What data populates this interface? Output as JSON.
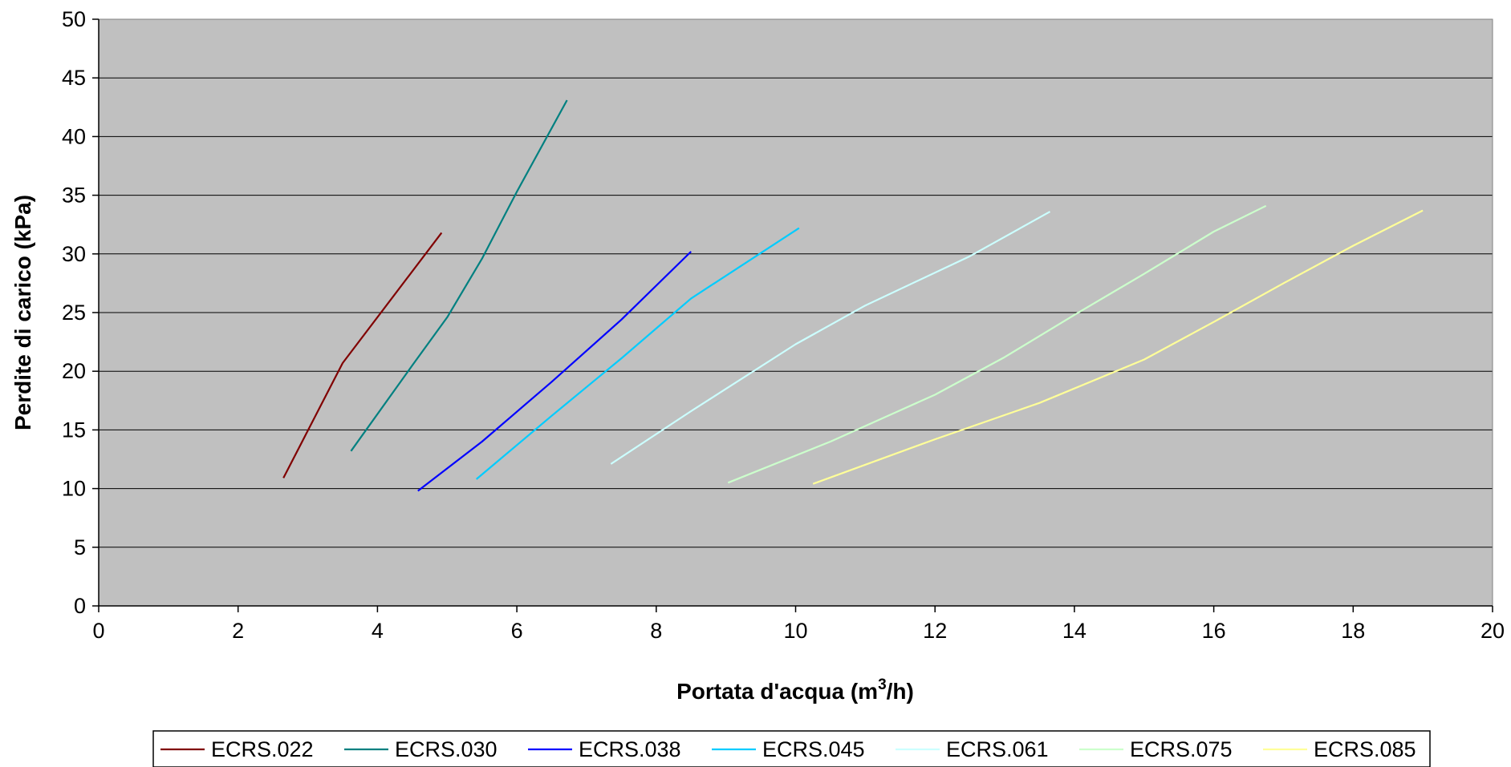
{
  "chart_data": {
    "type": "line",
    "title": "",
    "xlabel": {
      "before": "Portata d'acqua (m",
      "sup": "3",
      "after": "/h)"
    },
    "ylabel": "Perdite di carico (kPa)",
    "xlim": [
      0,
      20
    ],
    "ylim": [
      0,
      50
    ],
    "xticks": [
      0,
      2,
      4,
      6,
      8,
      10,
      12,
      14,
      16,
      18,
      20
    ],
    "yticks": [
      0,
      5,
      10,
      15,
      20,
      25,
      30,
      35,
      40,
      45,
      50
    ],
    "grid": "horizontal",
    "background_color": "#c0c0c0",
    "legend_position": "bottom",
    "series": [
      {
        "name": "ECRS.022",
        "color": "#800000",
        "points": [
          [
            2.65,
            10.9
          ],
          [
            3.5,
            20.7
          ],
          [
            4.92,
            31.8
          ]
        ]
      },
      {
        "name": "ECRS.030",
        "color": "#008080",
        "points": [
          [
            3.62,
            13.2
          ],
          [
            4.5,
            20.5
          ],
          [
            5.0,
            24.6
          ],
          [
            5.5,
            29.6
          ],
          [
            6.0,
            35.3
          ],
          [
            6.72,
            43.1
          ]
        ]
      },
      {
        "name": "ECRS.038",
        "color": "#0000ff",
        "points": [
          [
            4.58,
            9.8
          ],
          [
            5.5,
            14.0
          ],
          [
            6.5,
            19.1
          ],
          [
            7.5,
            24.4
          ],
          [
            8.5,
            30.2
          ]
        ]
      },
      {
        "name": "ECRS.045",
        "color": "#00ccff",
        "points": [
          [
            5.42,
            10.8
          ],
          [
            6.5,
            16.2
          ],
          [
            7.5,
            21.1
          ],
          [
            8.5,
            26.2
          ],
          [
            10.05,
            32.2
          ]
        ]
      },
      {
        "name": "ECRS.061",
        "color": "#ccffff",
        "points": [
          [
            7.35,
            12.1
          ],
          [
            8.5,
            16.6
          ],
          [
            10.0,
            22.3
          ],
          [
            11.0,
            25.6
          ],
          [
            12.5,
            29.8
          ],
          [
            13.65,
            33.6
          ]
        ]
      },
      {
        "name": "ECRS.075",
        "color": "#ccffcc",
        "points": [
          [
            9.03,
            10.5
          ],
          [
            10.5,
            14.0
          ],
          [
            12.0,
            18.0
          ],
          [
            13.0,
            21.2
          ],
          [
            14.0,
            24.8
          ],
          [
            15.0,
            28.3
          ],
          [
            16.0,
            31.9
          ],
          [
            16.75,
            34.1
          ]
        ]
      },
      {
        "name": "ECRS.085",
        "color": "#ffff99",
        "points": [
          [
            10.25,
            10.4
          ],
          [
            12.0,
            14.2
          ],
          [
            13.5,
            17.3
          ],
          [
            15.0,
            21.0
          ],
          [
            16.0,
            24.2
          ],
          [
            17.0,
            27.5
          ],
          [
            18.0,
            30.7
          ],
          [
            19.0,
            33.7
          ]
        ]
      }
    ]
  }
}
